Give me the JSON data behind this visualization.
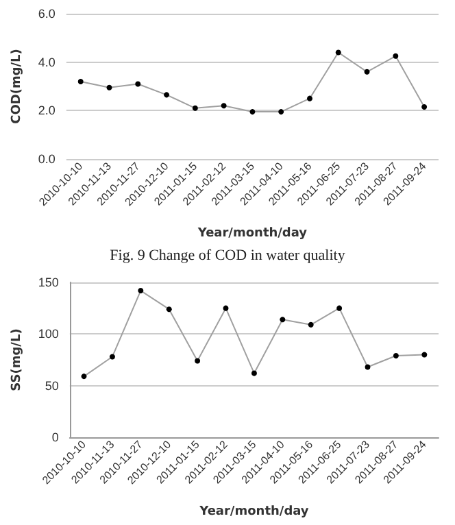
{
  "chart_data": [
    {
      "type": "line",
      "xlabel": "Year/month/day",
      "ylabel": "COD(mg/L)",
      "categories": [
        "2010-10-10",
        "2010-11-13",
        "2010-11-27",
        "2010-12-10",
        "2011-01-15",
        "2011-02-12",
        "2011-03-15",
        "2011-04-10",
        "2011-05-16",
        "2011-06-25",
        "2011-07-23",
        "2011-08-27",
        "2011-09-24"
      ],
      "series": [
        {
          "color": "#a0a0a0",
          "values": [
            3.2,
            2.95,
            3.1,
            2.65,
            2.1,
            2.2,
            1.95,
            1.95,
            2.5,
            4.4,
            3.6,
            4.25,
            2.15
          ]
        }
      ],
      "ylim": [
        0,
        6
      ],
      "yticks": [
        {
          "value": 0,
          "label": "0.0"
        },
        {
          "value": 2,
          "label": "2.0"
        },
        {
          "value": 4,
          "label": "4.0"
        },
        {
          "value": 6,
          "label": "6.0"
        }
      ],
      "grid": "y",
      "marker": "circle",
      "annotations": [
        "Fig. 9 Change of COD in water quality"
      ]
    },
    {
      "type": "line",
      "xlabel": "Year/month/day",
      "ylabel": "SS(mg/L)",
      "categories": [
        "2010-10-10",
        "2010-11-13",
        "2010-11-27",
        "2010-12-10",
        "2011-01-15",
        "2011-02-12",
        "2011-03-15",
        "2011-04-10",
        "2011-05-16",
        "2011-06-25",
        "2011-07-23",
        "2011-08-27",
        "2011-09-24"
      ],
      "series": [
        {
          "color": "#a0a0a0",
          "values": [
            59,
            78,
            142,
            124,
            74,
            125,
            62,
            114,
            109,
            125,
            68,
            79,
            80
          ]
        }
      ],
      "ylim": [
        0,
        150
      ],
      "yticks": [
        0,
        50,
        100,
        150
      ],
      "grid": "y",
      "marker": "circle"
    }
  ]
}
